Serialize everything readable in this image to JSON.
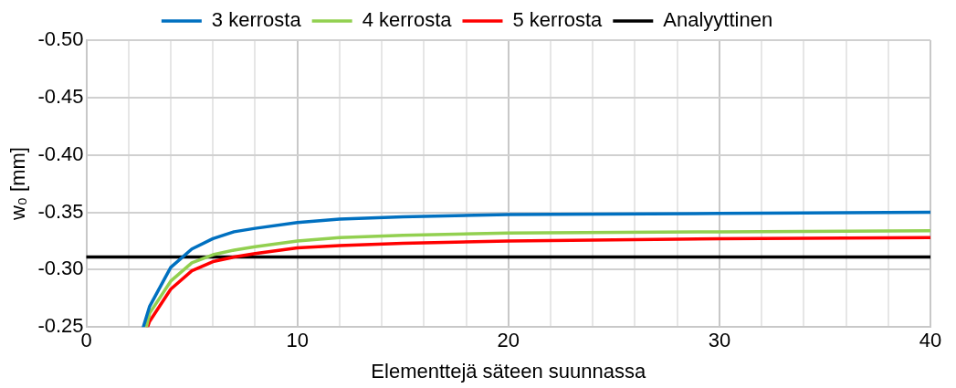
{
  "chart_data": {
    "type": "line",
    "xlabel": "Elementtejä säteen suunnassa",
    "ylabel": "w₀ [mm]",
    "xlim": [
      0,
      40
    ],
    "xticks": [
      0,
      {
        "value": 2,
        "label": null
      },
      {
        "value": 4,
        "label": null
      },
      {
        "value": 6,
        "label": null
      },
      {
        "value": 8,
        "label": null
      },
      10,
      {
        "value": 12,
        "label": null
      },
      {
        "value": 14,
        "label": null
      },
      {
        "value": 16,
        "label": null
      },
      {
        "value": 18,
        "label": null
      },
      20,
      {
        "value": 22,
        "label": null
      },
      {
        "value": 24,
        "label": null
      },
      {
        "value": 26,
        "label": null
      },
      {
        "value": 28,
        "label": null
      },
      30,
      {
        "value": 32,
        "label": null
      },
      {
        "value": 34,
        "label": null
      },
      {
        "value": 36,
        "label": null
      },
      {
        "value": 38,
        "label": null
      },
      40
    ],
    "ylim": [
      -0.25,
      -0.5
    ],
    "yticks": [
      {
        "value": -0.25,
        "label": "-0.25"
      },
      {
        "value": -0.3,
        "label": "-0.30"
      },
      {
        "value": -0.35,
        "label": "-0.35"
      },
      {
        "value": -0.4,
        "label": "-0.40"
      },
      {
        "value": -0.45,
        "label": "-0.45"
      },
      {
        "value": -0.5,
        "label": "-0.50"
      }
    ],
    "grid": true,
    "legend": "top",
    "marker": "none",
    "line_style": "solid",
    "series": [
      {
        "name": "3 kerrosta",
        "color": "#0070c0",
        "x": [
          2.7,
          3,
          4,
          5,
          6,
          7,
          8,
          10,
          12,
          15,
          20,
          30,
          40
        ],
        "values": [
          -0.25,
          -0.268,
          -0.302,
          -0.318,
          -0.327,
          -0.333,
          -0.336,
          -0.341,
          -0.344,
          -0.346,
          -0.348,
          -0.349,
          -0.35
        ]
      },
      {
        "name": "4 kerrosta",
        "color": "#92d050",
        "x": [
          2.85,
          3,
          4,
          5,
          6,
          7,
          8,
          10,
          12,
          15,
          20,
          30,
          40
        ],
        "values": [
          -0.25,
          -0.262,
          -0.29,
          -0.306,
          -0.313,
          -0.317,
          -0.32,
          -0.325,
          -0.328,
          -0.33,
          -0.332,
          -0.333,
          -0.334
        ]
      },
      {
        "name": "5 kerrosta",
        "color": "#ff0000",
        "x": [
          2.9,
          3,
          4,
          5,
          6,
          7,
          8,
          10,
          12,
          15,
          20,
          30,
          40
        ],
        "values": [
          -0.25,
          -0.255,
          -0.283,
          -0.299,
          -0.307,
          -0.311,
          -0.314,
          -0.319,
          -0.321,
          -0.323,
          -0.325,
          -0.327,
          -0.328
        ]
      },
      {
        "name": "Analyyttinen",
        "color": "#000000",
        "x": [
          0,
          40
        ],
        "values": [
          -0.311,
          -0.311
        ]
      }
    ]
  }
}
